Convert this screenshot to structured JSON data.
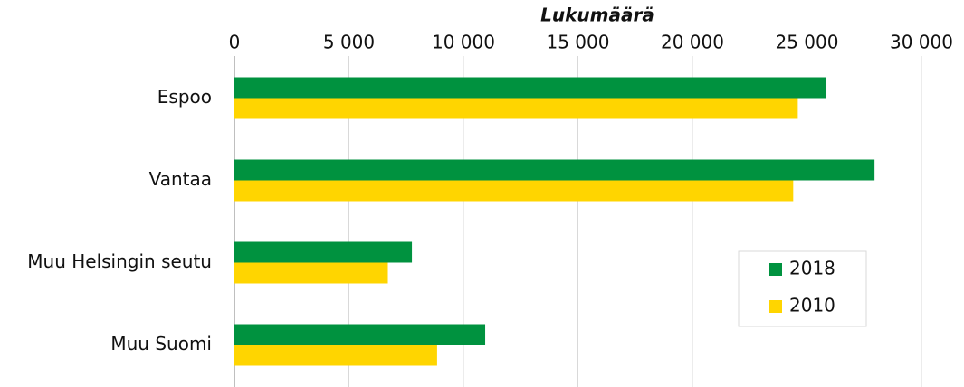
{
  "chart_data": {
    "type": "barh",
    "x_label": "Lukumäärä",
    "categories": [
      "Espoo",
      "Vantaa",
      "Muu Helsingin seutu",
      "Muu Suomi"
    ],
    "series": [
      {
        "name": "2018",
        "color": "#00923f",
        "values": [
          25850,
          27950,
          7750,
          10950
        ]
      },
      {
        "name": "2010",
        "color": "#ffd500",
        "values": [
          24600,
          24400,
          6700,
          8850
        ]
      }
    ],
    "xlim": [
      0,
      30000
    ],
    "xticks": [
      0,
      {
        "value": 5000,
        "label": "5 000"
      },
      {
        "value": 10000,
        "label": "10 000"
      },
      {
        "value": 15000,
        "label": "15 000"
      },
      {
        "value": 20000,
        "label": "20 000"
      },
      {
        "value": 25000,
        "label": "25 000"
      },
      {
        "value": 30000,
        "label": "30 000"
      }
    ],
    "grid": true,
    "legend": "center right"
  }
}
